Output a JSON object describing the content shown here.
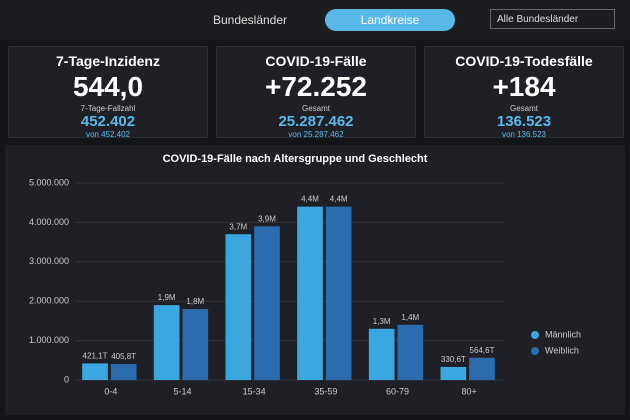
{
  "tabs": [
    "Bundesländer",
    "Landkreise"
  ],
  "dropdown": "Alle Bundesländer",
  "cards": [
    {
      "title": "7-Tage-Inzidenz",
      "value": "544,0",
      "sub_label": "7-Tage-Fallzahl",
      "sub_value": "452.402",
      "sub_note": "von 452.402"
    },
    {
      "title": "COVID-19-Fälle",
      "value": "+72.252",
      "sub_label": "Gesamt",
      "sub_value": "25.287.462",
      "sub_note": "von 25.287.462"
    },
    {
      "title": "COVID-19-Todesfälle",
      "value": "+184",
      "sub_label": "Gesamt",
      "sub_value": "136.523",
      "sub_note": "von 136.523"
    }
  ],
  "chart_data": {
    "type": "bar",
    "title": "COVID-19-Fälle nach Altersgruppe und Geschlecht",
    "categories": [
      "0-4",
      "5-14",
      "15-34",
      "35-59",
      "60-79",
      "80+"
    ],
    "series": [
      {
        "name": "Männlich",
        "color": "#3ba7e0",
        "values": [
          421100,
          1900000,
          3700000,
          4400000,
          1300000,
          330600
        ],
        "value_labels": [
          "421,1T",
          "1,9M",
          "3,7M",
          "4,4M",
          "1,3M",
          "330,6T"
        ]
      },
      {
        "name": "Weiblich",
        "color": "#2a6cad",
        "values": [
          405800,
          1800000,
          3900000,
          4400000,
          1400000,
          564600
        ],
        "value_labels": [
          "405,8T",
          "1,8M",
          "3,9M",
          "4,4M",
          "1,4M",
          "564,6T"
        ]
      }
    ],
    "ylim": [
      0,
      5000000
    ],
    "yticks": [
      0,
      {
        "value": 1000000,
        "label": "1.000.000"
      },
      {
        "value": 2000000,
        "label": "2.000.000"
      },
      {
        "value": 3000000,
        "label": "3.000.000"
      },
      {
        "value": 4000000,
        "label": "4.000.000"
      },
      {
        "value": 5000000,
        "label": "5.000.000"
      }
    ],
    "grid": true,
    "legend": "right"
  }
}
